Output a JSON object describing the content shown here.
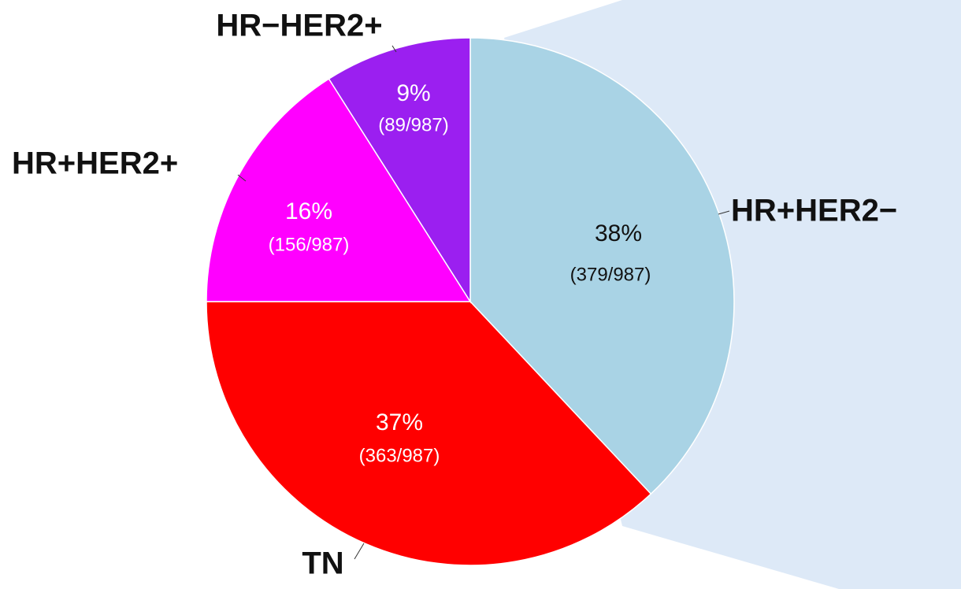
{
  "chart_data": {
    "type": "pie",
    "categories": [
      "HR+HER2−",
      "TN",
      "HR+HER2+",
      "HR−HER2+"
    ],
    "values": [
      38,
      37,
      16,
      9
    ],
    "value_labels": [
      "38%",
      "37%",
      "16%",
      "9%"
    ],
    "count_labels": [
      "(379/987)",
      "(363/987)",
      "(156/987)",
      "(89/987)"
    ],
    "colors": [
      "#a9d3e5",
      "#ff0000",
      "#ff00ff",
      "#9b1ff0"
    ]
  }
}
